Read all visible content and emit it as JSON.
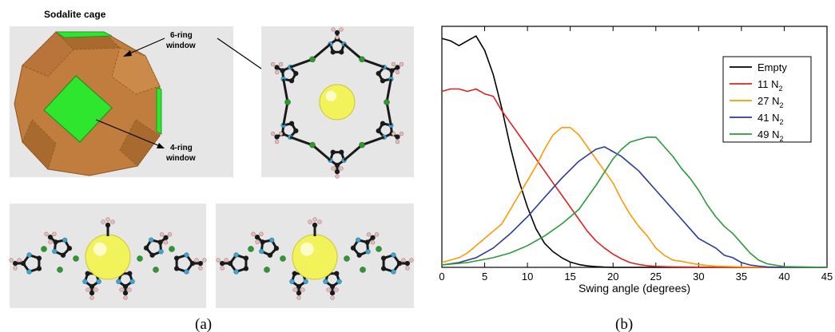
{
  "figure": {
    "panel_a": {
      "label": "(a)",
      "cage_title": "Sodalite cage",
      "callout_6ring": [
        "6-ring",
        "window"
      ],
      "callout_4ring": [
        "4-ring",
        "window"
      ]
    },
    "panel_b": {
      "label": "(b)"
    }
  },
  "colors": {
    "panel_bg": "#e6e6e6",
    "cage_face": "#c07d3e",
    "window_face": "#2ee62e",
    "carbon": "#1a1a1a",
    "nitrogen": "#3aa6d6",
    "zinc": "#2a9a2a",
    "hydrogen": "#f2b8b8",
    "guest_sphere": "#f2f25a"
  },
  "chart_data": {
    "type": "line",
    "title": "",
    "xlabel": "Swing angle (degrees)",
    "ylabel": "",
    "xlim": [
      0,
      45
    ],
    "xticks": [
      0,
      5,
      10,
      15,
      20,
      25,
      30,
      35,
      40,
      45
    ],
    "yticks_shown": false,
    "ylim": [
      0,
      1
    ],
    "legend_position": "top-right",
    "series": [
      {
        "name": "Empty",
        "name_base": "Empty",
        "name_sub": "",
        "color": "#000000",
        "x": [
          0,
          1,
          2,
          3,
          4,
          5,
          6,
          7,
          8,
          9,
          10,
          11,
          12,
          13,
          14,
          15,
          16,
          17,
          18,
          19,
          20,
          22,
          25,
          30,
          35,
          40,
          45
        ],
        "y": [
          0.95,
          0.94,
          0.92,
          0.94,
          0.96,
          0.9,
          0.8,
          0.66,
          0.5,
          0.36,
          0.25,
          0.16,
          0.1,
          0.065,
          0.04,
          0.022,
          0.012,
          0.006,
          0.003,
          0.001,
          0,
          0,
          0,
          0,
          0,
          0,
          0
        ]
      },
      {
        "name": "11 N2",
        "name_base": "11 N",
        "name_sub": "2",
        "color": "#e02020",
        "x": [
          0,
          1,
          2,
          3,
          4,
          5,
          6,
          7,
          8,
          9,
          10,
          11,
          12,
          13,
          14,
          15,
          16,
          17,
          18,
          19,
          20,
          21,
          22,
          23,
          24,
          25,
          27,
          30,
          35,
          40,
          45
        ],
        "y": [
          0.73,
          0.74,
          0.74,
          0.73,
          0.74,
          0.72,
          0.71,
          0.65,
          0.6,
          0.55,
          0.5,
          0.45,
          0.4,
          0.35,
          0.3,
          0.25,
          0.2,
          0.15,
          0.11,
          0.08,
          0.055,
          0.035,
          0.02,
          0.012,
          0.007,
          0.004,
          0.002,
          0.001,
          0,
          0,
          0
        ]
      },
      {
        "name": "27 N2",
        "name_base": "27 N",
        "name_sub": "2",
        "color": "#ff9900",
        "x": [
          0,
          1,
          2,
          3,
          4,
          5,
          6,
          7,
          8,
          9,
          10,
          11,
          12,
          13,
          14,
          15,
          16,
          17,
          18,
          19,
          20,
          21,
          22,
          23,
          24,
          25,
          26,
          27,
          28,
          29,
          30,
          31,
          32,
          35,
          40,
          45
        ],
        "y": [
          0.02,
          0.03,
          0.04,
          0.06,
          0.09,
          0.12,
          0.15,
          0.18,
          0.24,
          0.3,
          0.36,
          0.42,
          0.49,
          0.55,
          0.58,
          0.58,
          0.55,
          0.5,
          0.45,
          0.4,
          0.35,
          0.28,
          0.22,
          0.17,
          0.13,
          0.08,
          0.05,
          0.03,
          0.025,
          0.018,
          0.012,
          0.008,
          0.005,
          0.002,
          0,
          0
        ]
      },
      {
        "name": "41 N2",
        "name_base": "41 N",
        "name_sub": "2",
        "color": "#2a3a9a",
        "x": [
          0,
          2,
          4,
          6,
          8,
          10,
          12,
          14,
          16,
          18,
          19,
          20,
          21,
          22,
          23,
          24,
          25,
          26,
          27,
          28,
          29,
          30,
          31,
          32,
          33,
          34,
          35,
          36,
          37,
          38,
          40,
          45
        ],
        "y": [
          0.01,
          0.02,
          0.04,
          0.08,
          0.14,
          0.21,
          0.29,
          0.37,
          0.44,
          0.49,
          0.5,
          0.48,
          0.46,
          0.43,
          0.4,
          0.36,
          0.32,
          0.28,
          0.24,
          0.2,
          0.16,
          0.12,
          0.1,
          0.08,
          0.05,
          0.04,
          0.02,
          0.01,
          0.005,
          0.002,
          0,
          0
        ]
      },
      {
        "name": "49 N2",
        "name_base": "49 N",
        "name_sub": "2",
        "color": "#2a9a3a",
        "x": [
          0,
          3,
          6,
          8,
          10,
          12,
          14,
          16,
          18,
          20,
          21,
          22,
          23,
          24,
          25,
          26,
          27,
          28,
          29,
          30,
          31,
          32,
          33,
          34,
          35,
          36,
          37,
          38,
          40,
          45
        ],
        "y": [
          0.01,
          0.02,
          0.04,
          0.06,
          0.09,
          0.13,
          0.18,
          0.24,
          0.34,
          0.45,
          0.49,
          0.52,
          0.53,
          0.54,
          0.54,
          0.5,
          0.46,
          0.41,
          0.37,
          0.32,
          0.26,
          0.21,
          0.17,
          0.14,
          0.1,
          0.06,
          0.03,
          0.015,
          0.003,
          0
        ]
      }
    ]
  }
}
